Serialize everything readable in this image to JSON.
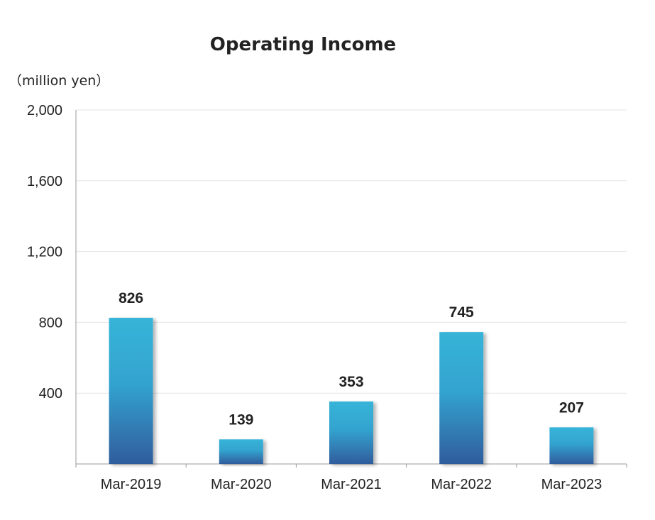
{
  "chart_data": {
    "type": "bar",
    "title": "Operating Income",
    "unit_label": "（million yen）",
    "xlabel": "",
    "ylabel": "",
    "categories": [
      "Mar-2019",
      "Mar-2020",
      "Mar-2021",
      "Mar-2022",
      "Mar-2023"
    ],
    "values": [
      826,
      139,
      353,
      745,
      207
    ],
    "data_labels": [
      "826",
      "139",
      "353",
      "745",
      "207"
    ],
    "ylim": [
      0,
      2000
    ],
    "yticks": [
      400,
      800,
      1200,
      1600,
      2000
    ],
    "ytick_labels": [
      "400",
      "800",
      "1,200",
      "1,600",
      "2,000"
    ],
    "grid": true,
    "legend": "none",
    "colors": {
      "bar_top": "#37b4d8",
      "bar_bottom": "#2f5c9c",
      "grid": "#e6e6e6",
      "axis": "#999999",
      "text": "#222222"
    }
  }
}
